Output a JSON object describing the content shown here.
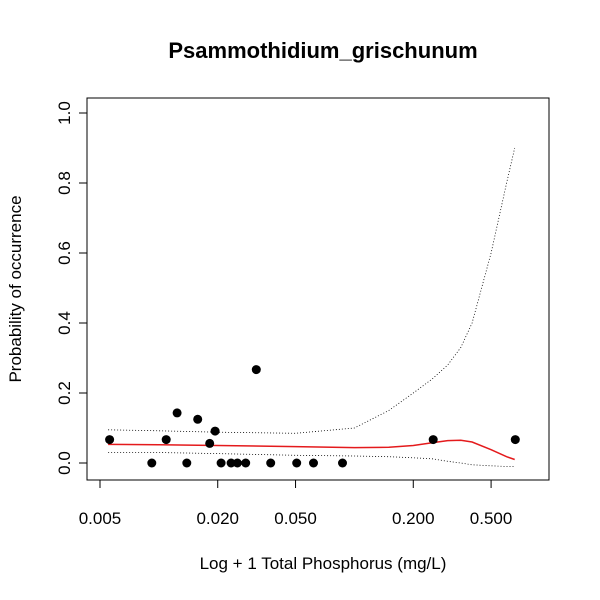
{
  "chart_data": {
    "type": "scatter",
    "title": "Psammothidium_grischunum",
    "xlabel": "Log + 1 Total Phosphorus (mg/L)",
    "ylabel": "Probability of occurrence",
    "x_scale": "log",
    "xlim": [
      0.005,
      0.8
    ],
    "ylim": [
      0.0,
      1.0
    ],
    "x_ticks": [
      {
        "value": 0.005,
        "label": "0.005"
      },
      {
        "value": 0.02,
        "label": "0.020"
      },
      {
        "value": 0.05,
        "label": "0.050"
      },
      {
        "value": 0.2,
        "label": "0.200"
      },
      {
        "value": 0.5,
        "label": "0.500"
      }
    ],
    "y_ticks": [
      {
        "value": 0.0,
        "label": "0.0"
      },
      {
        "value": 0.2,
        "label": "0.2"
      },
      {
        "value": 0.4,
        "label": "0.4"
      },
      {
        "value": 0.6,
        "label": "0.6"
      },
      {
        "value": 0.8,
        "label": "0.8"
      },
      {
        "value": 1.0,
        "label": "1.0"
      }
    ],
    "grid": false,
    "points": [
      {
        "x": 0.0056,
        "y": 0.067
      },
      {
        "x": 0.0092,
        "y": 0.0
      },
      {
        "x": 0.0109,
        "y": 0.067
      },
      {
        "x": 0.0124,
        "y": 0.143
      },
      {
        "x": 0.0139,
        "y": 0.0
      },
      {
        "x": 0.0158,
        "y": 0.125
      },
      {
        "x": 0.0182,
        "y": 0.056
      },
      {
        "x": 0.0194,
        "y": 0.091
      },
      {
        "x": 0.0208,
        "y": 0.0
      },
      {
        "x": 0.0234,
        "y": 0.0
      },
      {
        "x": 0.0252,
        "y": 0.0
      },
      {
        "x": 0.0278,
        "y": 0.0
      },
      {
        "x": 0.0315,
        "y": 0.267
      },
      {
        "x": 0.0373,
        "y": 0.0
      },
      {
        "x": 0.0507,
        "y": 0.0
      },
      {
        "x": 0.0618,
        "y": 0.0
      },
      {
        "x": 0.0869,
        "y": 0.0
      },
      {
        "x": 0.253,
        "y": 0.067
      },
      {
        "x": 0.665,
        "y": 0.067
      }
    ],
    "fit": {
      "x": [
        0.0055,
        0.01,
        0.02,
        0.05,
        0.1,
        0.15,
        0.2,
        0.25,
        0.3,
        0.35,
        0.4,
        0.5,
        0.6,
        0.66
      ],
      "y": [
        0.053,
        0.052,
        0.05,
        0.047,
        0.044,
        0.045,
        0.05,
        0.058,
        0.064,
        0.065,
        0.06,
        0.038,
        0.018,
        0.01
      ],
      "color": "#e41a1c"
    },
    "ci_upper": {
      "x": [
        0.0055,
        0.01,
        0.02,
        0.05,
        0.1,
        0.15,
        0.2,
        0.25,
        0.3,
        0.35,
        0.4,
        0.5,
        0.6,
        0.66
      ],
      "y": [
        0.095,
        0.092,
        0.088,
        0.085,
        0.1,
        0.15,
        0.2,
        0.24,
        0.28,
        0.33,
        0.4,
        0.6,
        0.8,
        0.9
      ],
      "color": "#000000"
    },
    "ci_lower": {
      "x": [
        0.0055,
        0.01,
        0.02,
        0.05,
        0.1,
        0.15,
        0.2,
        0.25,
        0.3,
        0.35,
        0.4,
        0.5,
        0.6,
        0.66
      ],
      "y": [
        0.03,
        0.03,
        0.027,
        0.022,
        0.02,
        0.018,
        0.015,
        0.012,
        0.005,
        0.0,
        -0.005,
        -0.008,
        -0.01,
        -0.01
      ],
      "color": "#000000"
    },
    "point_color": "#000000"
  }
}
